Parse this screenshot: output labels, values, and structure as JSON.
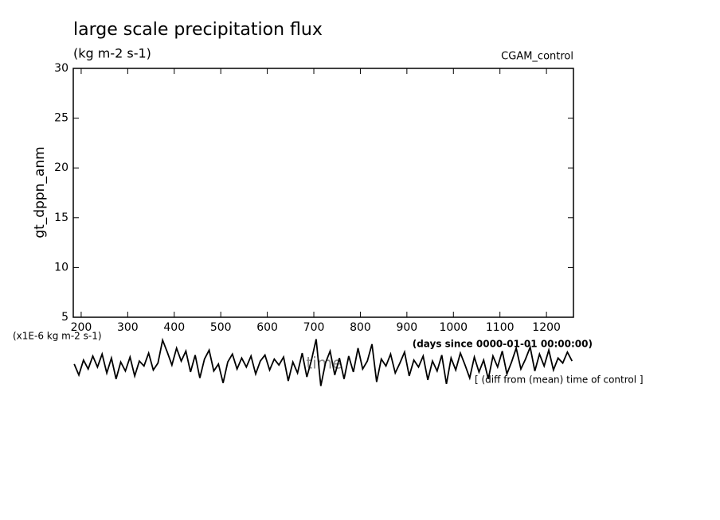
{
  "chart_data": {
    "type": "line",
    "title": "large scale precipitation flux",
    "subtitle": "(kg m-2 s-1)",
    "run_label": "CGAM_control",
    "y_label": "gt_dppn_anm",
    "value_unit_label": "(x1E-6 kg m-2 s-1)",
    "x_unit_label": "(days since 0000-01-01 00:00:00)",
    "x_label": "time",
    "note": "[ (diff from (mean) time of control ]",
    "xlim": [
      183,
      1258
    ],
    "xticks": [
      200,
      300,
      400,
      500,
      600,
      700,
      800,
      900,
      1000,
      1100,
      1200
    ],
    "ylim": [
      5,
      30
    ],
    "yticks": [
      5,
      10,
      15,
      20,
      25,
      30
    ],
    "x": [
      185,
      195,
      205,
      215,
      225,
      235,
      245,
      255,
      265,
      275,
      285,
      295,
      305,
      315,
      325,
      335,
      345,
      355,
      365,
      375,
      385,
      395,
      405,
      415,
      425,
      435,
      445,
      455,
      465,
      475,
      485,
      495,
      505,
      515,
      525,
      535,
      545,
      555,
      565,
      575,
      585,
      595,
      605,
      615,
      625,
      635,
      645,
      655,
      665,
      675,
      685,
      695,
      705,
      715,
      725,
      735,
      745,
      755,
      765,
      775,
      785,
      795,
      805,
      815,
      825,
      835,
      845,
      855,
      865,
      875,
      885,
      895,
      905,
      915,
      925,
      935,
      945,
      955,
      965,
      975,
      985,
      995,
      1005,
      1015,
      1025,
      1035,
      1045,
      1055,
      1065,
      1075,
      1085,
      1095,
      1105,
      1115,
      1125,
      1135,
      1145,
      1155,
      1165,
      1175,
      1185,
      1195,
      1205,
      1215,
      1225,
      1235,
      1245,
      1255
    ],
    "series": [
      {
        "color": "#000000",
        "values": [
          0.3,
          -0.8,
          0.7,
          -0.2,
          1.1,
          0.0,
          1.3,
          -0.6,
          0.9,
          -1.2,
          0.5,
          -0.4,
          1.0,
          -0.9,
          0.6,
          0.1,
          1.4,
          -0.3,
          0.4,
          2.7,
          1.5,
          0.2,
          1.9,
          0.6,
          1.6,
          -0.5,
          1.2,
          -1.1,
          0.8,
          1.7,
          -0.4,
          0.3,
          -1.6,
          0.5,
          1.3,
          -0.2,
          0.9,
          0.0,
          1.1,
          -0.7,
          0.6,
          1.2,
          -0.3,
          0.8,
          0.2,
          1.0,
          -1.4,
          0.5,
          -0.6,
          1.4,
          -1.0,
          0.7,
          2.8,
          -1.9,
          0.4,
          1.6,
          -0.8,
          0.9,
          -1.2,
          1.1,
          -0.5,
          1.9,
          -0.2,
          0.6,
          2.3,
          -1.5,
          0.8,
          0.1,
          1.3,
          -0.6,
          0.4,
          1.5,
          -0.9,
          0.7,
          0.0,
          1.1,
          -1.3,
          0.6,
          -0.4,
          1.2,
          -1.7,
          0.9,
          -0.3,
          1.4,
          0.2,
          -1.1,
          1.0,
          -0.5,
          0.7,
          -1.2,
          1.1,
          0.0,
          1.6,
          -0.7,
          0.5,
          1.9,
          -0.2,
          0.8,
          2.0,
          -0.4,
          1.3,
          0.1,
          1.7,
          -0.3,
          0.9,
          0.4,
          1.5,
          0.6
        ]
      }
    ]
  }
}
